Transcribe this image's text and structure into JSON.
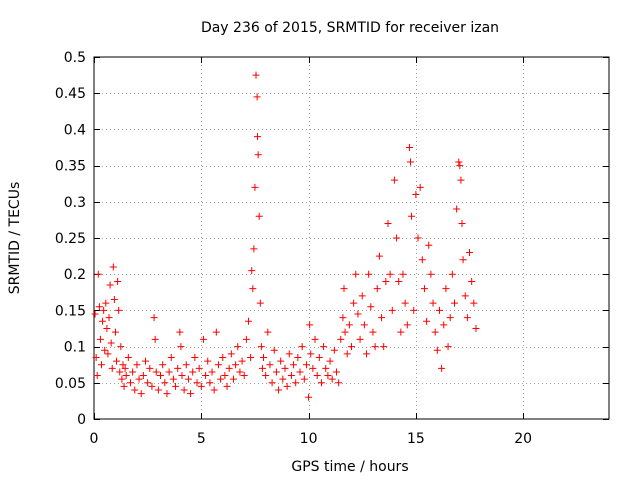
{
  "chart_data": {
    "type": "scatter",
    "title": "Day 236 of 2015, SRMTID for receiver izan",
    "xlabel": "GPS time / hours",
    "ylabel": "SRMTID / TECUs",
    "xlim": [
      0,
      24
    ],
    "ylim": [
      0,
      0.5
    ],
    "xticks": [
      0,
      5,
      10,
      15,
      20
    ],
    "xtick_labels": [
      "0",
      "5",
      "10",
      "15",
      "20"
    ],
    "yticks": [
      0,
      0.05,
      0.1,
      0.15,
      0.2,
      0.25,
      0.3,
      0.35,
      0.4,
      0.45,
      0.5
    ],
    "ytick_labels": [
      "0",
      "0.05",
      "0.1",
      "0.15",
      "0.2",
      "0.25",
      "0.3",
      "0.35",
      "0.4",
      "0.45",
      "0.5"
    ],
    "grid": true,
    "marker": "+",
    "color": "#ff0000",
    "series": [
      {
        "name": "SRMTID",
        "points": [
          [
            0.05,
            0.145
          ],
          [
            0.1,
            0.085
          ],
          [
            0.15,
            0.06
          ],
          [
            0.2,
            0.2
          ],
          [
            0.25,
            0.155
          ],
          [
            0.3,
            0.11
          ],
          [
            0.35,
            0.075
          ],
          [
            0.4,
            0.135
          ],
          [
            0.45,
            0.15
          ],
          [
            0.5,
            0.095
          ],
          [
            0.55,
            0.16
          ],
          [
            0.6,
            0.125
          ],
          [
            0.65,
            0.09
          ],
          [
            0.7,
            0.14
          ],
          [
            0.75,
            0.185
          ],
          [
            0.8,
            0.105
          ],
          [
            0.85,
            0.07
          ],
          [
            0.9,
            0.21
          ],
          [
            0.95,
            0.165
          ],
          [
            1.0,
            0.12
          ],
          [
            1.05,
            0.08
          ],
          [
            1.1,
            0.19
          ],
          [
            1.15,
            0.15
          ],
          [
            1.2,
            0.065
          ],
          [
            1.25,
            0.1
          ],
          [
            1.3,
            0.055
          ],
          [
            1.35,
            0.075
          ],
          [
            1.4,
            0.045
          ],
          [
            1.45,
            0.07
          ],
          [
            1.5,
            0.06
          ],
          [
            1.6,
            0.085
          ],
          [
            1.7,
            0.05
          ],
          [
            1.8,
            0.065
          ],
          [
            1.9,
            0.04
          ],
          [
            2.0,
            0.075
          ],
          [
            2.1,
            0.055
          ],
          [
            2.2,
            0.035
          ],
          [
            2.3,
            0.06
          ],
          [
            2.4,
            0.08
          ],
          [
            2.5,
            0.05
          ],
          [
            2.6,
            0.07
          ],
          [
            2.7,
            0.045
          ],
          [
            2.8,
            0.14
          ],
          [
            2.85,
            0.11
          ],
          [
            2.9,
            0.065
          ],
          [
            3.0,
            0.04
          ],
          [
            3.1,
            0.06
          ],
          [
            3.2,
            0.075
          ],
          [
            3.3,
            0.05
          ],
          [
            3.4,
            0.035
          ],
          [
            3.5,
            0.065
          ],
          [
            3.6,
            0.085
          ],
          [
            3.7,
            0.055
          ],
          [
            3.8,
            0.045
          ],
          [
            3.9,
            0.07
          ],
          [
            4.0,
            0.12
          ],
          [
            4.05,
            0.1
          ],
          [
            4.1,
            0.06
          ],
          [
            4.2,
            0.04
          ],
          [
            4.3,
            0.075
          ],
          [
            4.4,
            0.055
          ],
          [
            4.5,
            0.035
          ],
          [
            4.6,
            0.065
          ],
          [
            4.7,
            0.085
          ],
          [
            4.8,
            0.05
          ],
          [
            4.9,
            0.07
          ],
          [
            5.0,
            0.045
          ],
          [
            5.1,
            0.11
          ],
          [
            5.2,
            0.06
          ],
          [
            5.3,
            0.08
          ],
          [
            5.4,
            0.05
          ],
          [
            5.5,
            0.065
          ],
          [
            5.6,
            0.04
          ],
          [
            5.7,
            0.12
          ],
          [
            5.8,
            0.075
          ],
          [
            5.9,
            0.055
          ],
          [
            6.0,
            0.085
          ],
          [
            6.1,
            0.06
          ],
          [
            6.2,
            0.045
          ],
          [
            6.3,
            0.07
          ],
          [
            6.4,
            0.09
          ],
          [
            6.5,
            0.055
          ],
          [
            6.6,
            0.075
          ],
          [
            6.7,
            0.1
          ],
          [
            6.8,
            0.065
          ],
          [
            6.9,
            0.08
          ],
          [
            7.0,
            0.06
          ],
          [
            7.1,
            0.11
          ],
          [
            7.2,
            0.135
          ],
          [
            7.3,
            0.085
          ],
          [
            7.35,
            0.205
          ],
          [
            7.4,
            0.18
          ],
          [
            7.45,
            0.235
          ],
          [
            7.5,
            0.32
          ],
          [
            7.55,
            0.475
          ],
          [
            7.6,
            0.445
          ],
          [
            7.62,
            0.39
          ],
          [
            7.65,
            0.365
          ],
          [
            7.7,
            0.28
          ],
          [
            7.75,
            0.16
          ],
          [
            7.8,
            0.1
          ],
          [
            7.85,
            0.07
          ],
          [
            7.9,
            0.085
          ],
          [
            8.0,
            0.06
          ],
          [
            8.1,
            0.12
          ],
          [
            8.2,
            0.075
          ],
          [
            8.3,
            0.05
          ],
          [
            8.4,
            0.095
          ],
          [
            8.5,
            0.065
          ],
          [
            8.6,
            0.04
          ],
          [
            8.7,
            0.08
          ],
          [
            8.8,
            0.055
          ],
          [
            8.9,
            0.07
          ],
          [
            9.0,
            0.045
          ],
          [
            9.1,
            0.09
          ],
          [
            9.2,
            0.06
          ],
          [
            9.3,
            0.075
          ],
          [
            9.4,
            0.05
          ],
          [
            9.5,
            0.085
          ],
          [
            9.6,
            0.065
          ],
          [
            9.7,
            0.1
          ],
          [
            9.8,
            0.055
          ],
          [
            9.9,
            0.075
          ],
          [
            10.0,
            0.03
          ],
          [
            10.05,
            0.13
          ],
          [
            10.1,
            0.09
          ],
          [
            10.2,
            0.07
          ],
          [
            10.3,
            0.11
          ],
          [
            10.4,
            0.06
          ],
          [
            10.5,
            0.085
          ],
          [
            10.6,
            0.05
          ],
          [
            10.7,
            0.1
          ],
          [
            10.8,
            0.07
          ],
          [
            10.9,
            0.06
          ],
          [
            11.0,
            0.08
          ],
          [
            11.1,
            0.055
          ],
          [
            11.2,
            0.095
          ],
          [
            11.3,
            0.065
          ],
          [
            11.4,
            0.05
          ],
          [
            11.5,
            0.11
          ],
          [
            11.6,
            0.14
          ],
          [
            11.65,
            0.18
          ],
          [
            11.7,
            0.12
          ],
          [
            11.8,
            0.09
          ],
          [
            11.9,
            0.13
          ],
          [
            12.0,
            0.1
          ],
          [
            12.1,
            0.16
          ],
          [
            12.2,
            0.2
          ],
          [
            12.3,
            0.145
          ],
          [
            12.4,
            0.11
          ],
          [
            12.5,
            0.17
          ],
          [
            12.6,
            0.13
          ],
          [
            12.7,
            0.09
          ],
          [
            12.8,
            0.2
          ],
          [
            12.9,
            0.155
          ],
          [
            13.0,
            0.12
          ],
          [
            13.1,
            0.1
          ],
          [
            13.2,
            0.18
          ],
          [
            13.3,
            0.225
          ],
          [
            13.4,
            0.14
          ],
          [
            13.5,
            0.1
          ],
          [
            13.6,
            0.19
          ],
          [
            13.7,
            0.27
          ],
          [
            13.8,
            0.2
          ],
          [
            13.9,
            0.15
          ],
          [
            14.0,
            0.33
          ],
          [
            14.1,
            0.25
          ],
          [
            14.2,
            0.19
          ],
          [
            14.3,
            0.12
          ],
          [
            14.4,
            0.2
          ],
          [
            14.5,
            0.16
          ],
          [
            14.6,
            0.13
          ],
          [
            14.7,
            0.375
          ],
          [
            14.75,
            0.355
          ],
          [
            14.8,
            0.28
          ],
          [
            14.9,
            0.15
          ],
          [
            15.0,
            0.31
          ],
          [
            15.1,
            0.25
          ],
          [
            15.2,
            0.32
          ],
          [
            15.3,
            0.22
          ],
          [
            15.4,
            0.18
          ],
          [
            15.5,
            0.135
          ],
          [
            15.6,
            0.24
          ],
          [
            15.7,
            0.2
          ],
          [
            15.8,
            0.16
          ],
          [
            15.9,
            0.12
          ],
          [
            16.0,
            0.095
          ],
          [
            16.1,
            0.15
          ],
          [
            16.2,
            0.07
          ],
          [
            16.3,
            0.13
          ],
          [
            16.4,
            0.18
          ],
          [
            16.5,
            0.1
          ],
          [
            16.6,
            0.14
          ],
          [
            16.7,
            0.2
          ],
          [
            16.8,
            0.16
          ],
          [
            16.9,
            0.29
          ],
          [
            17.0,
            0.355
          ],
          [
            17.05,
            0.35
          ],
          [
            17.1,
            0.33
          ],
          [
            17.15,
            0.27
          ],
          [
            17.2,
            0.22
          ],
          [
            17.3,
            0.17
          ],
          [
            17.4,
            0.14
          ],
          [
            17.5,
            0.23
          ],
          [
            17.6,
            0.19
          ],
          [
            17.7,
            0.16
          ],
          [
            17.8,
            0.125
          ]
        ]
      }
    ]
  }
}
